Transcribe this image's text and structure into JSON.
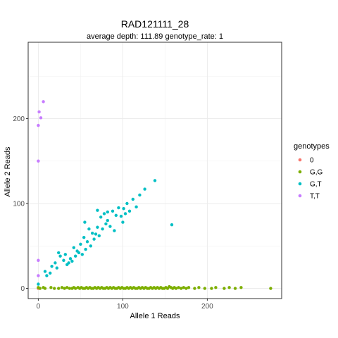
{
  "chart_data": {
    "type": "scatter",
    "title": "RAD121111_28",
    "subtitle": "average depth:  111.89  genotype_rate:  1",
    "xlabel": "Allele 1 Reads",
    "ylabel": "Allele 2 Reads",
    "xlim": [
      -12,
      288
    ],
    "ylim": [
      -12,
      290
    ],
    "x_ticks": [
      0,
      100,
      200
    ],
    "y_ticks": [
      0,
      100,
      200
    ],
    "grid": true,
    "legend_title": "genotypes",
    "legend_position": "right",
    "series": [
      {
        "name": "0",
        "color": "#F8766D",
        "points": [
          [
            0,
            0
          ]
        ]
      },
      {
        "name": "G,G",
        "color": "#7CAE00",
        "points": [
          [
            0,
            1
          ],
          [
            2,
            0
          ],
          [
            6,
            1
          ],
          [
            8,
            0
          ],
          [
            15,
            1
          ],
          [
            19,
            0
          ],
          [
            24,
            0
          ],
          [
            28,
            1
          ],
          [
            31,
            0
          ],
          [
            34,
            1
          ],
          [
            37,
            0
          ],
          [
            40,
            0
          ],
          [
            42,
            1
          ],
          [
            44,
            0
          ],
          [
            47,
            1
          ],
          [
            49,
            0
          ],
          [
            51,
            1
          ],
          [
            53,
            0
          ],
          [
            55,
            0
          ],
          [
            57,
            1
          ],
          [
            59,
            0
          ],
          [
            61,
            1
          ],
          [
            63,
            0
          ],
          [
            65,
            0
          ],
          [
            67,
            1
          ],
          [
            69,
            0
          ],
          [
            71,
            1
          ],
          [
            73,
            0
          ],
          [
            75,
            1
          ],
          [
            77,
            0
          ],
          [
            79,
            0
          ],
          [
            81,
            1
          ],
          [
            83,
            0
          ],
          [
            85,
            1
          ],
          [
            87,
            0
          ],
          [
            89,
            1
          ],
          [
            91,
            0
          ],
          [
            93,
            0
          ],
          [
            95,
            1
          ],
          [
            97,
            0
          ],
          [
            99,
            1
          ],
          [
            101,
            0
          ],
          [
            103,
            0
          ],
          [
            105,
            1
          ],
          [
            107,
            0
          ],
          [
            109,
            1
          ],
          [
            111,
            0
          ],
          [
            113,
            1
          ],
          [
            115,
            0
          ],
          [
            117,
            0
          ],
          [
            119,
            1
          ],
          [
            121,
            0
          ],
          [
            123,
            1
          ],
          [
            125,
            0
          ],
          [
            127,
            1
          ],
          [
            129,
            0
          ],
          [
            131,
            0
          ],
          [
            133,
            1
          ],
          [
            135,
            0
          ],
          [
            137,
            1
          ],
          [
            139,
            0
          ],
          [
            141,
            1
          ],
          [
            143,
            0
          ],
          [
            145,
            1
          ],
          [
            147,
            0
          ],
          [
            149,
            0
          ],
          [
            151,
            1
          ],
          [
            153,
            0
          ],
          [
            155,
            2
          ],
          [
            157,
            1
          ],
          [
            159,
            0
          ],
          [
            161,
            1
          ],
          [
            163,
            0
          ],
          [
            166,
            1
          ],
          [
            169,
            0
          ],
          [
            172,
            1
          ],
          [
            175,
            0
          ],
          [
            178,
            1
          ],
          [
            185,
            0
          ],
          [
            190,
            1
          ],
          [
            197,
            0
          ],
          [
            205,
            0
          ],
          [
            210,
            1
          ],
          [
            220,
            0
          ],
          [
            226,
            1
          ],
          [
            233,
            0
          ],
          [
            240,
            1
          ],
          [
            275,
            0
          ]
        ]
      },
      {
        "name": "G,T",
        "color": "#00BFC4",
        "points": [
          [
            0,
            5
          ],
          [
            10,
            15
          ],
          [
            14,
            18
          ],
          [
            16,
            26
          ],
          [
            20,
            30
          ],
          [
            22,
            24
          ],
          [
            26,
            38
          ],
          [
            30,
            33
          ],
          [
            32,
            40
          ],
          [
            34,
            28
          ],
          [
            36,
            30
          ],
          [
            38,
            35
          ],
          [
            40,
            32
          ],
          [
            42,
            48
          ],
          [
            44,
            38
          ],
          [
            46,
            44
          ],
          [
            48,
            42
          ],
          [
            50,
            52
          ],
          [
            52,
            40
          ],
          [
            54,
            60
          ],
          [
            56,
            46
          ],
          [
            58,
            55
          ],
          [
            60,
            70
          ],
          [
            62,
            50
          ],
          [
            64,
            65
          ],
          [
            66,
            58
          ],
          [
            68,
            64
          ],
          [
            70,
            72
          ],
          [
            72,
            62
          ],
          [
            74,
            84
          ],
          [
            76,
            70
          ],
          [
            78,
            88
          ],
          [
            80,
            76
          ],
          [
            82,
            80
          ],
          [
            85,
            73
          ],
          [
            88,
            91
          ],
          [
            90,
            68
          ],
          [
            92,
            86
          ],
          [
            95,
            95
          ],
          [
            98,
            85
          ],
          [
            100,
            78
          ],
          [
            103,
            88
          ],
          [
            105,
            100
          ],
          [
            108,
            91
          ],
          [
            112,
            105
          ],
          [
            116,
            96
          ],
          [
            120,
            110
          ],
          [
            126,
            117
          ],
          [
            138,
            127
          ],
          [
            158,
            75
          ],
          [
            8,
            20
          ],
          [
            24,
            42
          ],
          [
            55,
            78
          ],
          [
            82,
            90
          ],
          [
            101,
            94
          ],
          [
            70,
            92
          ]
        ]
      },
      {
        "name": "T,T",
        "color": "#C77CFF",
        "points": [
          [
            0,
            15
          ],
          [
            0,
            33
          ],
          [
            0,
            150
          ],
          [
            0,
            192
          ],
          [
            1,
            208
          ],
          [
            3,
            201
          ],
          [
            6,
            220
          ]
        ]
      }
    ]
  }
}
